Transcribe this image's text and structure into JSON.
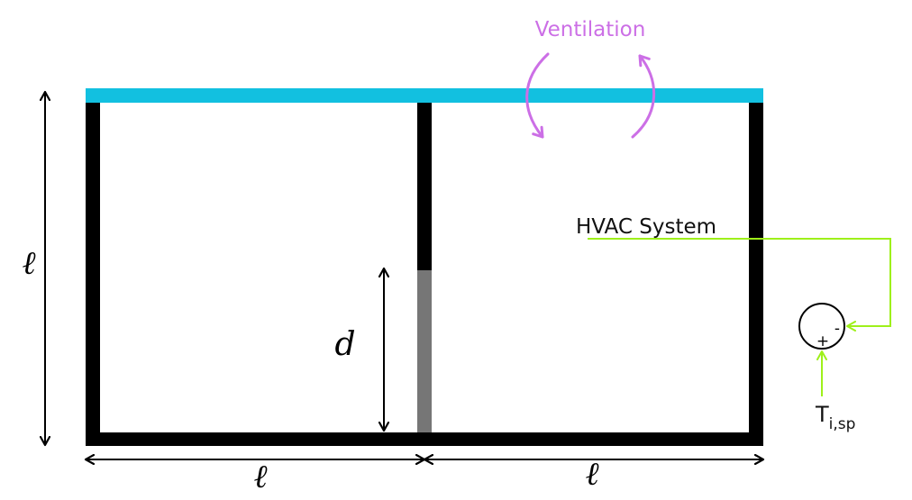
{
  "labels": {
    "ventilation": "Ventilation",
    "hvac_system": "HVAC System",
    "height_symbol": "ℓ",
    "width_left_symbol": "ℓ",
    "width_right_symbol": "ℓ",
    "opening_symbol": "d",
    "setpoint_main": "T",
    "setpoint_sub": "i,sp",
    "plus_sign": "+",
    "minus_sign": "-"
  },
  "colors": {
    "wall": "#000000",
    "roof": "#12c0e0",
    "opening": "#767676",
    "ventilation": "#cc6fe6",
    "control": "#9ef01a",
    "background": "#ffffff"
  }
}
